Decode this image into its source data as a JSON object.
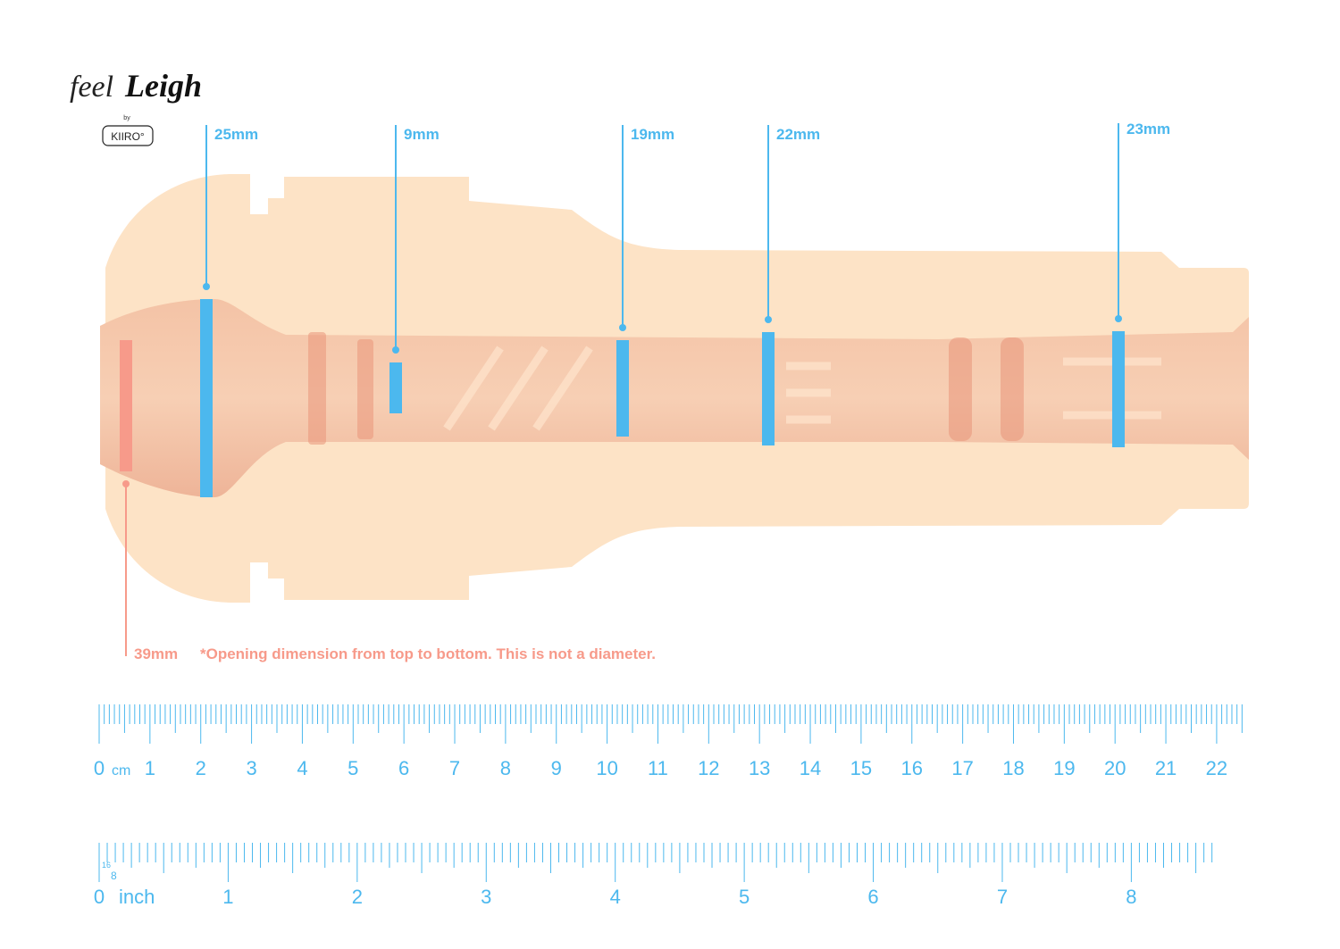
{
  "logo": {
    "script": "feel",
    "name": "Leigh",
    "by": "by",
    "brand": "KIIRO°"
  },
  "measurements": [
    "25mm",
    "9mm",
    "19mm",
    "22mm",
    "23mm"
  ],
  "opening": {
    "label": "39mm",
    "note": "*Opening dimension from top to bottom. This is not a diameter."
  },
  "ruler_cm": {
    "unit": "cm",
    "labels": [
      "0",
      "1",
      "2",
      "3",
      "4",
      "5",
      "6",
      "7",
      "8",
      "9",
      "10",
      "11",
      "12",
      "13",
      "14",
      "15",
      "16",
      "17",
      "18",
      "19",
      "20",
      "21",
      "22"
    ]
  },
  "ruler_inch": {
    "unit": "inch",
    "fraction_top": "16",
    "fraction_bottom": "8",
    "labels": [
      "0",
      "1",
      "2",
      "3",
      "4",
      "5",
      "6",
      "7",
      "8"
    ]
  }
}
